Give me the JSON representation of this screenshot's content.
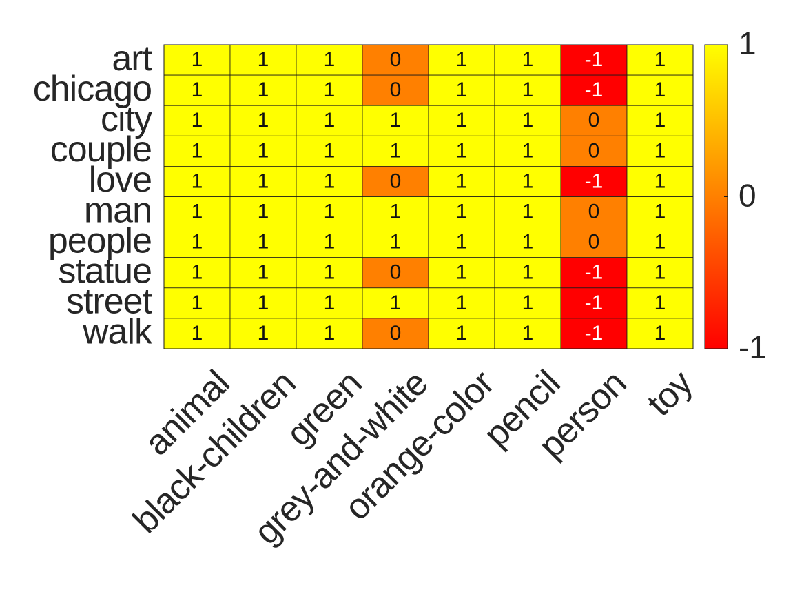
{
  "chart_data": {
    "type": "heatmap",
    "title": "",
    "xlabel": "",
    "ylabel": "",
    "rows": [
      "art",
      "chicago",
      "city",
      "couple",
      "love",
      "man",
      "people",
      "statue",
      "street",
      "walk"
    ],
    "columns": [
      "animal",
      "black-children",
      "green",
      "grey-and-white",
      "orange-color",
      "pencil",
      "person",
      "toy"
    ],
    "values": [
      [
        1,
        1,
        1,
        0,
        1,
        1,
        -1,
        1
      ],
      [
        1,
        1,
        1,
        0,
        1,
        1,
        -1,
        1
      ],
      [
        1,
        1,
        1,
        1,
        1,
        1,
        0,
        1
      ],
      [
        1,
        1,
        1,
        1,
        1,
        1,
        0,
        1
      ],
      [
        1,
        1,
        1,
        0,
        1,
        1,
        -1,
        1
      ],
      [
        1,
        1,
        1,
        1,
        1,
        1,
        0,
        1
      ],
      [
        1,
        1,
        1,
        1,
        1,
        1,
        0,
        1
      ],
      [
        1,
        1,
        1,
        0,
        1,
        1,
        -1,
        1
      ],
      [
        1,
        1,
        1,
        1,
        1,
        1,
        -1,
        1
      ],
      [
        1,
        1,
        1,
        0,
        1,
        1,
        -1,
        1
      ]
    ],
    "value_range": [
      -1,
      1
    ],
    "colormap": "autumn",
    "colors": {
      "-1": "#ff0000",
      "0": "#ff8000",
      "1": "#ffff00"
    },
    "colorbar": {
      "ticks": [
        1,
        0,
        -1
      ],
      "tick_labels": [
        "1",
        "0",
        "-1"
      ]
    },
    "grid": true,
    "legend": "colorbar-right"
  }
}
